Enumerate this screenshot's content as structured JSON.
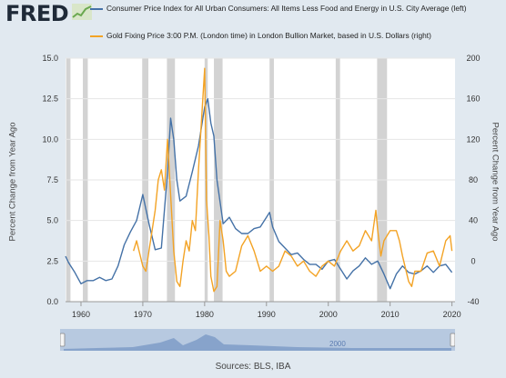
{
  "header": {
    "logo_text": "FRED",
    "logo_icon": "chart-line-icon"
  },
  "legend": [
    {
      "label": "Consumer Price Index for All Urban Consumers: All Items Less Food and Energy in U.S. City Average (left)",
      "color": "#4572a7"
    },
    {
      "label": "Gold Fixing Price 3:00 P.M. (London time) in London Bullion Market, based in U.S. Dollars (right)",
      "color": "#f3a325"
    }
  ],
  "footer": {
    "source": "Sources: BLS, IBA"
  },
  "navigator": {
    "label": "2000"
  },
  "chart_data": {
    "type": "line",
    "ylabel_left": "Percent Change from Year Ago",
    "ylabel_right": "Percent Change from Year Ago",
    "xlim": [
      1957.5,
      2020.5
    ],
    "ylim_left": [
      0,
      15
    ],
    "ylim_right": [
      -40,
      200
    ],
    "x_ticks": [
      "1960",
      "1970",
      "1980",
      "1990",
      "2000",
      "2010",
      "2020"
    ],
    "y_ticks_left": [
      "0.0",
      "2.5",
      "5.0",
      "7.5",
      "10.0",
      "12.5",
      "15.0"
    ],
    "y_ticks_right": [
      "-40",
      "0",
      "40",
      "80",
      "120",
      "160",
      "200"
    ],
    "grid": true,
    "recessions": [
      [
        1957.6,
        1958.3
      ],
      [
        1960.3,
        1961.1
      ],
      [
        1969.9,
        1970.9
      ],
      [
        1973.9,
        1975.2
      ],
      [
        1980.0,
        1980.5
      ],
      [
        1981.5,
        1982.9
      ],
      [
        1990.5,
        1991.2
      ],
      [
        2001.2,
        2001.9
      ],
      [
        2007.9,
        2009.5
      ]
    ],
    "series": [
      {
        "name": "Consumer Price Index for All Urban Consumers: All Items Less Food and Energy in U.S. City Average (left)",
        "axis": "left",
        "x": [
          1957.5,
          1958,
          1959,
          1960,
          1961,
          1962,
          1963,
          1964,
          1965,
          1966,
          1967,
          1968,
          1969,
          1970,
          1971,
          1972,
          1973,
          1974,
          1974.5,
          1975,
          1975.5,
          1976,
          1977,
          1978,
          1979,
          1980,
          1980.5,
          1981,
          1981.5,
          1982,
          1983,
          1984,
          1985,
          1986,
          1987,
          1988,
          1989,
          1990,
          1990.5,
          1991,
          1992,
          1993,
          1994,
          1995,
          1996,
          1997,
          1998,
          1999,
          2000,
          2001,
          2002,
          2003,
          2004,
          2005,
          2006,
          2007,
          2008,
          2009,
          2010,
          2011,
          2012,
          2013,
          2014,
          2015,
          2016,
          2017,
          2018,
          2019,
          2020
        ],
        "y": [
          2.8,
          2.4,
          1.8,
          1.1,
          1.3,
          1.3,
          1.5,
          1.3,
          1.4,
          2.2,
          3.5,
          4.3,
          5.0,
          6.6,
          4.8,
          3.2,
          3.3,
          8.0,
          11.3,
          10.0,
          7.5,
          6.2,
          6.5,
          8.0,
          9.6,
          12.0,
          12.5,
          11.0,
          10.2,
          7.5,
          4.8,
          5.2,
          4.5,
          4.2,
          4.2,
          4.5,
          4.6,
          5.2,
          5.5,
          4.6,
          3.7,
          3.3,
          2.9,
          3.0,
          2.6,
          2.3,
          2.3,
          2.0,
          2.5,
          2.6,
          2.0,
          1.4,
          1.9,
          2.2,
          2.7,
          2.3,
          2.5,
          1.7,
          0.8,
          1.7,
          2.2,
          1.8,
          1.7,
          1.9,
          2.2,
          1.8,
          2.2,
          2.3,
          1.8
        ]
      },
      {
        "name": "Gold Fixing Price 3:00 P.M. (London time) in London Bullion Market, based in U.S. Dollars (right)",
        "axis": "right",
        "x": [
          1968.5,
          1969,
          1970,
          1970.5,
          1971,
          1971.5,
          1972,
          1972.5,
          1973,
          1973.5,
          1974,
          1974.5,
          1975,
          1975.5,
          1976,
          1976.5,
          1977,
          1977.5,
          1978,
          1978.5,
          1979,
          1979.5,
          1980,
          1980.3,
          1980.7,
          1981,
          1981.5,
          1982,
          1982.5,
          1983,
          1983.5,
          1984,
          1985,
          1986,
          1987,
          1988,
          1989,
          1990,
          1991,
          1992,
          1993,
          1994,
          1995,
          1996,
          1997,
          1998,
          1999,
          2000,
          2001,
          2002,
          2003,
          2004,
          2005,
          2006,
          2007,
          2007.7,
          2008,
          2008.5,
          2009,
          2010,
          2011,
          2011.5,
          2012,
          2013,
          2013.5,
          2014,
          2015,
          2016,
          2017,
          2018,
          2019,
          2019.7,
          2020
        ],
        "y": [
          10,
          20,
          -5,
          -10,
          10,
          30,
          50,
          80,
          90,
          70,
          120,
          65,
          10,
          -20,
          -25,
          0,
          20,
          10,
          40,
          30,
          90,
          140,
          190,
          60,
          25,
          -15,
          -30,
          -25,
          40,
          20,
          -10,
          -15,
          -10,
          15,
          25,
          10,
          -10,
          -5,
          -10,
          -5,
          10,
          5,
          -5,
          0,
          -10,
          -15,
          -5,
          0,
          -5,
          10,
          20,
          10,
          15,
          30,
          20,
          50,
          30,
          5,
          20,
          30,
          30,
          20,
          5,
          -20,
          -25,
          -10,
          -10,
          8,
          10,
          -5,
          20,
          25,
          10
        ]
      }
    ]
  }
}
